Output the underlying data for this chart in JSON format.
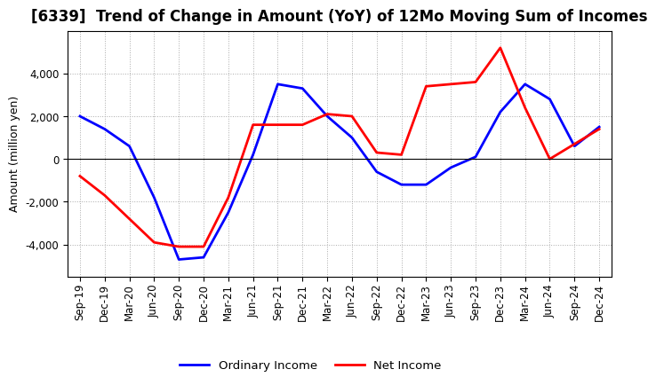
{
  "title": "[6339]  Trend of Change in Amount (YoY) of 12Mo Moving Sum of Incomes",
  "ylabel": "Amount (million yen)",
  "x_labels": [
    "Sep-19",
    "Dec-19",
    "Mar-20",
    "Jun-20",
    "Sep-20",
    "Dec-20",
    "Mar-21",
    "Jun-21",
    "Sep-21",
    "Dec-21",
    "Mar-22",
    "Jun-22",
    "Sep-22",
    "Dec-22",
    "Mar-23",
    "Jun-23",
    "Sep-23",
    "Dec-23",
    "Mar-24",
    "Jun-24",
    "Sep-24",
    "Dec-24"
  ],
  "ordinary_income": [
    2000,
    1400,
    600,
    -1800,
    -4700,
    -4600,
    -2500,
    200,
    3500,
    3300,
    2000,
    1000,
    -600,
    -1200,
    -1200,
    -400,
    100,
    2200,
    3500,
    2800,
    600,
    1500
  ],
  "net_income": [
    -800,
    -1700,
    -2800,
    -3900,
    -4100,
    -4100,
    -1800,
    1600,
    1600,
    1600,
    2100,
    2000,
    300,
    200,
    3400,
    3500,
    3600,
    5200,
    2400,
    0,
    700,
    1400
  ],
  "ordinary_color": "#0000FF",
  "net_color": "#FF0000",
  "ylim": [
    -5500,
    6000
  ],
  "yticks": [
    -4000,
    -2000,
    0,
    2000,
    4000
  ],
  "background_color": "#FFFFFF",
  "grid_color": "#AAAAAA",
  "line_width": 2.0,
  "legend_ordinary": "Ordinary Income",
  "legend_net": "Net Income",
  "title_fontsize": 12,
  "tick_fontsize": 8.5,
  "ylabel_fontsize": 9
}
